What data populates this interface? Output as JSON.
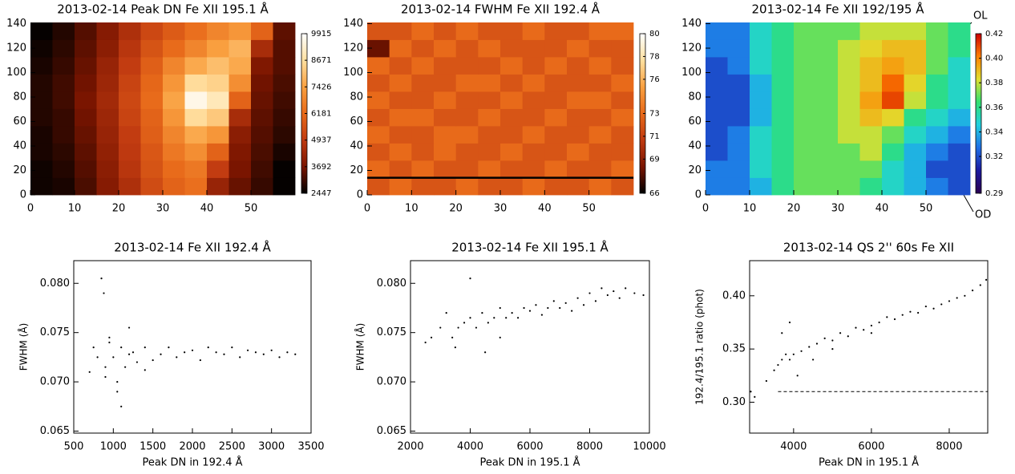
{
  "chart_data": [
    {
      "type": "heatmap",
      "title": "2013-02-14 Peak DN Fe XII 195.1 Å",
      "x_bins": [
        0,
        5,
        10,
        15,
        20,
        25,
        30,
        35,
        40,
        45,
        50,
        55,
        60
      ],
      "y_bins": [
        0,
        14.1,
        28.2,
        42.3,
        56.4,
        70.5,
        84.6,
        98.7,
        112.8,
        126.9,
        141
      ],
      "z": [
        [
          2600,
          2700,
          3200,
          3900,
          4600,
          5400,
          6000,
          6300,
          4200,
          3500,
          3000,
          2500
        ],
        [
          2600,
          2800,
          3300,
          4000,
          4800,
          5600,
          6200,
          6500,
          5000,
          3700,
          3100,
          2500
        ],
        [
          2700,
          2900,
          3400,
          4100,
          4900,
          5700,
          6500,
          7000,
          6000,
          3800,
          3200,
          2700
        ],
        [
          2700,
          3000,
          3500,
          4200,
          5000,
          5900,
          6800,
          7600,
          7200,
          4000,
          3300,
          2900
        ],
        [
          2800,
          3000,
          3600,
          4300,
          5200,
          6000,
          7200,
          8600,
          8200,
          4500,
          3400,
          3000
        ],
        [
          2800,
          3100,
          3700,
          4400,
          5300,
          6200,
          7500,
          9600,
          9000,
          6000,
          3500,
          3100
        ],
        [
          2800,
          3100,
          3600,
          4300,
          5200,
          6100,
          7200,
          8600,
          8400,
          7000,
          3600,
          3200
        ],
        [
          2700,
          3000,
          3500,
          4200,
          5000,
          5900,
          6800,
          7600,
          8000,
          7600,
          3800,
          3300
        ],
        [
          2600,
          2900,
          3400,
          4000,
          4800,
          5600,
          6200,
          6800,
          7400,
          7800,
          4500,
          3300
        ],
        [
          2500,
          2800,
          3300,
          3900,
          4600,
          5300,
          5800,
          6300,
          6800,
          7200,
          6000,
          3400
        ]
      ],
      "xlim": [
        0,
        60
      ],
      "ylim": [
        0,
        141
      ],
      "xticks": [
        0,
        10,
        20,
        30,
        40,
        50
      ],
      "yticks": [
        0,
        20,
        40,
        60,
        80,
        100,
        120,
        140
      ],
      "clim": [
        2447,
        9915
      ],
      "cticks": [
        2447,
        3692,
        4937,
        6181,
        7426,
        8671,
        9915
      ],
      "colormap": [
        "#000000",
        "#7a1500",
        "#c03a10",
        "#e86a1a",
        "#f9a040",
        "#ffe0a0",
        "#ffffff"
      ]
    },
    {
      "type": "heatmap",
      "title": "2013-02-14 FWHM  Fe XII 192.4 Å",
      "x_bins": [
        0,
        5,
        10,
        15,
        20,
        25,
        30,
        35,
        40,
        45,
        50,
        55,
        60
      ],
      "y_bins": [
        0,
        14.1,
        28.2,
        42.3,
        56.4,
        70.5,
        84.6,
        98.7,
        112.8,
        126.9,
        141
      ],
      "z": [
        [
          72,
          73,
          72,
          72,
          73,
          72,
          72,
          73,
          72,
          72,
          73,
          72
        ],
        [
          73,
          72,
          73,
          72,
          72,
          73,
          72,
          72,
          73,
          72,
          72,
          73
        ],
        [
          72,
          73,
          72,
          73,
          72,
          72,
          73,
          72,
          72,
          73,
          72,
          72
        ],
        [
          73,
          72,
          72,
          73,
          73,
          72,
          72,
          73,
          72,
          72,
          73,
          72
        ],
        [
          72,
          73,
          73,
          72,
          72,
          73,
          72,
          72,
          73,
          72,
          72,
          73
        ],
        [
          73,
          72,
          72,
          73,
          72,
          72,
          73,
          72,
          72,
          73,
          73,
          72
        ],
        [
          72,
          73,
          72,
          72,
          73,
          73,
          72,
          73,
          72,
          72,
          72,
          73
        ],
        [
          73,
          72,
          73,
          72,
          72,
          72,
          73,
          72,
          73,
          72,
          73,
          72
        ],
        [
          68,
          73,
          72,
          73,
          72,
          73,
          72,
          72,
          72,
          73,
          72,
          72
        ],
        [
          72,
          72,
          73,
          72,
          73,
          72,
          72,
          73,
          72,
          72,
          73,
          73
        ]
      ],
      "xlim": [
        0,
        60
      ],
      "ylim": [
        0,
        141
      ],
      "xticks": [
        0,
        10,
        20,
        30,
        40,
        50
      ],
      "yticks": [
        0,
        20,
        40,
        60,
        80,
        100,
        120,
        140
      ],
      "clim": [
        66,
        80
      ],
      "cticks": [
        66,
        69,
        71,
        73,
        76,
        78,
        80
      ],
      "hline": {
        "y": 14
      },
      "colormap": [
        "#000000",
        "#7a1500",
        "#c03a10",
        "#e86a1a",
        "#f9a040",
        "#ffe0a0",
        "#ffffff"
      ]
    },
    {
      "type": "heatmap",
      "title": "2013-02-14  Fe XII 192/195 Å",
      "x_bins": [
        0,
        5,
        10,
        15,
        20,
        25,
        30,
        35,
        40,
        45,
        50,
        55,
        60
      ],
      "y_bins": [
        0,
        14.1,
        28.2,
        42.3,
        56.4,
        70.5,
        84.6,
        98.7,
        112.8,
        126.9,
        141
      ],
      "z": [
        [
          0.33,
          0.33,
          0.34,
          0.36,
          0.37,
          0.37,
          0.37,
          0.36,
          0.35,
          0.34,
          0.33,
          0.32
        ],
        [
          0.33,
          0.33,
          0.35,
          0.36,
          0.37,
          0.37,
          0.37,
          0.37,
          0.35,
          0.34,
          0.32,
          0.32
        ],
        [
          0.32,
          0.33,
          0.35,
          0.36,
          0.37,
          0.37,
          0.37,
          0.38,
          0.36,
          0.34,
          0.33,
          0.32
        ],
        [
          0.32,
          0.33,
          0.35,
          0.36,
          0.37,
          0.37,
          0.38,
          0.38,
          0.37,
          0.35,
          0.34,
          0.33
        ],
        [
          0.32,
          0.32,
          0.34,
          0.36,
          0.37,
          0.37,
          0.38,
          0.39,
          0.385,
          0.36,
          0.35,
          0.34
        ],
        [
          0.32,
          0.32,
          0.34,
          0.36,
          0.37,
          0.37,
          0.38,
          0.395,
          0.41,
          0.38,
          0.36,
          0.35
        ],
        [
          0.32,
          0.32,
          0.34,
          0.36,
          0.37,
          0.37,
          0.38,
          0.39,
          0.405,
          0.385,
          0.36,
          0.35
        ],
        [
          0.32,
          0.33,
          0.35,
          0.36,
          0.37,
          0.37,
          0.38,
          0.39,
          0.395,
          0.39,
          0.37,
          0.35
        ],
        [
          0.33,
          0.33,
          0.35,
          0.36,
          0.37,
          0.37,
          0.38,
          0.385,
          0.39,
          0.39,
          0.37,
          0.36
        ],
        [
          0.33,
          0.33,
          0.35,
          0.36,
          0.37,
          0.37,
          0.37,
          0.38,
          0.38,
          0.38,
          0.37,
          0.36
        ]
      ],
      "xlim": [
        0,
        60
      ],
      "ylim": [
        0,
        141
      ],
      "xticks": [
        0,
        10,
        20,
        30,
        40,
        50
      ],
      "yticks": [
        0,
        20,
        40,
        60,
        80,
        100,
        120,
        140
      ],
      "clim": [
        0.29,
        0.42
      ],
      "cticks": [
        0.29,
        0.32,
        0.34,
        0.36,
        0.38,
        {
          "value": 0.4,
          "label": "0.40"
        },
        0.42
      ],
      "annotations": [
        "OL",
        "OD"
      ],
      "colormap": [
        "#2a0050",
        "#1a1aa0",
        "#1e6ee6",
        "#20d0e0",
        "#30e070",
        "#e0e030",
        "#ff8000",
        "#cc0000"
      ]
    },
    {
      "type": "scatter",
      "title": "2013-02-14 Fe XII 192.4 Å",
      "xlabel": "Peak DN in 192.4 Å",
      "ylabel": "FWHM (Å)",
      "x": [
        700,
        750,
        800,
        850,
        880,
        900,
        950,
        1000,
        1050,
        1100,
        1150,
        1200,
        1250,
        1300,
        1400,
        1500,
        1600,
        1700,
        1800,
        1900,
        2000,
        2100,
        2200,
        2300,
        2400,
        2500,
        2600,
        2700,
        2800,
        2900,
        3000,
        3100,
        3200,
        3300,
        950,
        1050,
        1100,
        1200,
        900,
        1400
      ],
      "y": [
        0.071,
        0.0735,
        0.0725,
        0.0805,
        0.079,
        0.0715,
        0.074,
        0.0725,
        0.07,
        0.0735,
        0.0715,
        0.0728,
        0.073,
        0.072,
        0.0735,
        0.0722,
        0.0728,
        0.0735,
        0.0725,
        0.073,
        0.0732,
        0.0722,
        0.0735,
        0.073,
        0.0728,
        0.0735,
        0.0725,
        0.0732,
        0.073,
        0.0728,
        0.0732,
        0.0725,
        0.073,
        0.0728,
        0.0745,
        0.069,
        0.0675,
        0.0755,
        0.0705,
        0.0712
      ],
      "xlim": [
        500,
        3500
      ],
      "ylim": [
        0.0648,
        0.0823
      ],
      "xticks": [
        500,
        1000,
        1500,
        2000,
        2500,
        3000,
        3500
      ],
      "yticks": [
        0.065,
        {
          "value": 0.07,
          "label": "0.070"
        },
        0.075,
        {
          "value": 0.08,
          "label": "0.080"
        }
      ],
      "color": "#000000"
    },
    {
      "type": "scatter",
      "title": "2013-02-14 Fe XII 195.1 Å",
      "xlabel": "Peak DN in 195.1 Å",
      "ylabel": "FWHM (Å)",
      "x": [
        2500,
        2700,
        3000,
        3200,
        3400,
        3600,
        3800,
        4000,
        4200,
        4400,
        4600,
        4800,
        5000,
        5200,
        5400,
        5600,
        5800,
        6000,
        6200,
        6400,
        6600,
        6800,
        7000,
        7200,
        7400,
        7600,
        7800,
        8000,
        8200,
        8400,
        8600,
        8800,
        9000,
        9200,
        9500,
        9800,
        3500,
        4000,
        4500,
        5000
      ],
      "y": [
        0.074,
        0.0745,
        0.0755,
        0.077,
        0.0745,
        0.0755,
        0.076,
        0.0765,
        0.0755,
        0.077,
        0.076,
        0.0765,
        0.0775,
        0.0765,
        0.077,
        0.0765,
        0.0775,
        0.0772,
        0.0778,
        0.0768,
        0.0775,
        0.0782,
        0.0775,
        0.078,
        0.0772,
        0.0785,
        0.0778,
        0.079,
        0.0782,
        0.0795,
        0.0788,
        0.0792,
        0.0785,
        0.0795,
        0.079,
        0.0788,
        0.0735,
        0.0805,
        0.073,
        0.0745
      ],
      "xlim": [
        2000,
        10000
      ],
      "ylim": [
        0.0648,
        0.0823
      ],
      "xticks": [
        2000,
        4000,
        6000,
        8000,
        10000
      ],
      "yticks": [
        0.065,
        {
          "value": 0.07,
          "label": "0.070"
        },
        0.075,
        {
          "value": 0.08,
          "label": "0.080"
        }
      ],
      "color": "#000000"
    },
    {
      "type": "scatter",
      "title": "2013-02-14 QS 2'' 60s Fe XII",
      "xlabel": "Peak DN in 195.1 Å",
      "ylabel": "192.4/195.1 ratio (phot)",
      "x": [
        2900,
        3000,
        3300,
        3500,
        3600,
        3700,
        3800,
        3900,
        4000,
        4200,
        4400,
        4600,
        4800,
        5000,
        5200,
        5400,
        5600,
        5800,
        6000,
        6200,
        6400,
        6600,
        6800,
        7000,
        7200,
        7400,
        7600,
        7800,
        8000,
        8200,
        8400,
        8600,
        8800,
        8950,
        3700,
        3900,
        4100,
        4500,
        5000,
        6000
      ],
      "y": [
        0.31,
        0.305,
        0.32,
        0.33,
        0.335,
        0.34,
        0.345,
        0.34,
        0.345,
        0.348,
        0.352,
        0.355,
        0.36,
        0.358,
        0.365,
        0.362,
        0.37,
        0.368,
        0.372,
        0.375,
        0.38,
        0.378,
        0.382,
        0.385,
        0.384,
        0.39,
        0.388,
        0.392,
        0.395,
        0.398,
        0.4,
        0.405,
        0.41,
        0.415,
        0.365,
        0.375,
        0.325,
        0.34,
        0.35,
        0.365
      ],
      "xlim": [
        2870,
        8990
      ],
      "ylim": [
        0.271,
        0.433
      ],
      "xticks": [
        4000,
        6000,
        8000
      ],
      "yticks": [
        {
          "value": 0.3,
          "label": "0.30"
        },
        0.35,
        {
          "value": 0.4,
          "label": "0.40"
        }
      ],
      "hline": {
        "y": 0.31,
        "xmin": 3600
      },
      "color": "#000000"
    }
  ]
}
